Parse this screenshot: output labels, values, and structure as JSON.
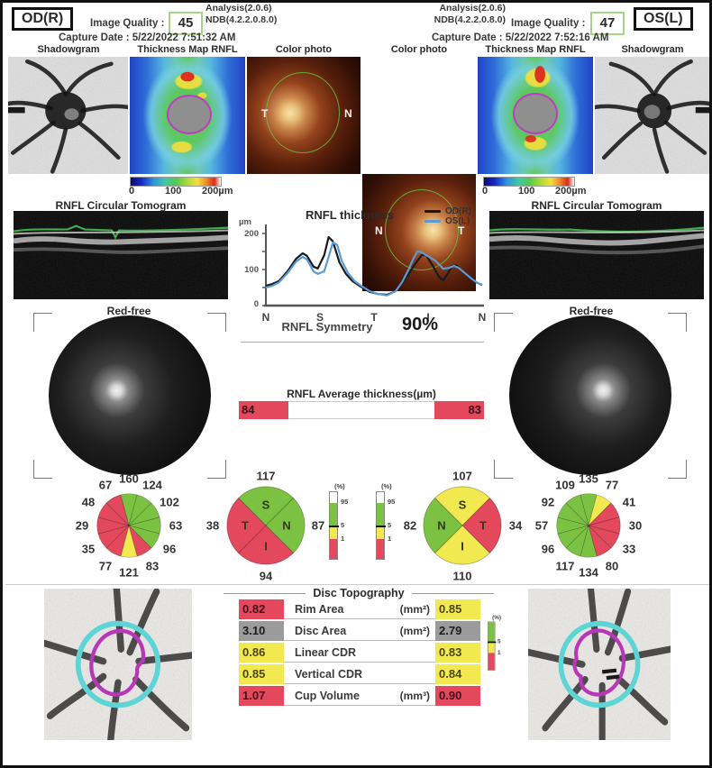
{
  "header": {
    "analysis": "Analysis(2.0.6)",
    "ndb": "NDB(4.2.2.0.8.0)",
    "quality_label": "Image Quality :",
    "od": {
      "eye": "OD(R)",
      "quality": "45",
      "capture": "Capture Date : 5/22/2022 7:51:32 AM"
    },
    "os": {
      "eye": "OS(L)",
      "quality": "47",
      "capture": "Capture Date : 5/22/2022 7:52:16 AM"
    }
  },
  "columns": {
    "shadowgram": "Shadowgram",
    "thickness_map": "Thickness Map RNFL",
    "color_photo": "Color photo"
  },
  "colorbar": {
    "t0": "0",
    "t1": "100",
    "t2": "200µm"
  },
  "photo_marks": {
    "t": "T",
    "n": "N"
  },
  "tomogram_title": "RNFL Circular Tomogram",
  "redfree_title": "Red-free",
  "chart_data": {
    "type": "line",
    "title": "RNFL thickness",
    "ylabel": "µm",
    "yticks": [
      "0",
      "100",
      "200"
    ],
    "ylim": [
      0,
      240
    ],
    "x_axis_labels": [
      "N",
      "S",
      "T",
      "I",
      "N"
    ],
    "legend_position": "top-right",
    "series": [
      {
        "name": "OD(R)",
        "color": "#1a1a1a",
        "points": [
          [
            0,
            55
          ],
          [
            3,
            60
          ],
          [
            6,
            68
          ],
          [
            10,
            95
          ],
          [
            14,
            130
          ],
          [
            17,
            145
          ],
          [
            19,
            138
          ],
          [
            22,
            108
          ],
          [
            24,
            103
          ],
          [
            27,
            140
          ],
          [
            29,
            190
          ],
          [
            31,
            178
          ],
          [
            34,
            120
          ],
          [
            37,
            88
          ],
          [
            40,
            68
          ],
          [
            44,
            52
          ],
          [
            48,
            38
          ],
          [
            52,
            32
          ],
          [
            56,
            30
          ],
          [
            60,
            40
          ],
          [
            63,
            62
          ],
          [
            66,
            88
          ],
          [
            69,
            115
          ],
          [
            72,
            140
          ],
          [
            74,
            140
          ],
          [
            77,
            112
          ],
          [
            80,
            80
          ],
          [
            82,
            70
          ],
          [
            84,
            88
          ],
          [
            86,
            108
          ],
          [
            88,
            112
          ],
          [
            91,
            95
          ],
          [
            94,
            78
          ],
          [
            97,
            65
          ],
          [
            100,
            57
          ]
        ]
      },
      {
        "name": "OS(L)",
        "color": "#5b9bd5",
        "points": [
          [
            0,
            50
          ],
          [
            3,
            55
          ],
          [
            6,
            64
          ],
          [
            10,
            90
          ],
          [
            14,
            122
          ],
          [
            17,
            135
          ],
          [
            19,
            128
          ],
          [
            22,
            95
          ],
          [
            24,
            88
          ],
          [
            27,
            95
          ],
          [
            29,
            135
          ],
          [
            31,
            175
          ],
          [
            33,
            168
          ],
          [
            35,
            125
          ],
          [
            38,
            90
          ],
          [
            41,
            68
          ],
          [
            44,
            55
          ],
          [
            48,
            40
          ],
          [
            52,
            32
          ],
          [
            56,
            28
          ],
          [
            60,
            40
          ],
          [
            63,
            65
          ],
          [
            66,
            100
          ],
          [
            68,
            128
          ],
          [
            70,
            150
          ],
          [
            72,
            148
          ],
          [
            74,
            140
          ],
          [
            76,
            133
          ],
          [
            78,
            126
          ],
          [
            80,
            115
          ],
          [
            82,
            102
          ],
          [
            85,
            105
          ],
          [
            87,
            110
          ],
          [
            89,
            105
          ],
          [
            92,
            90
          ],
          [
            95,
            75
          ],
          [
            98,
            62
          ],
          [
            100,
            58
          ]
        ]
      }
    ]
  },
  "symmetry": {
    "label": "RNFL Symmetry",
    "value": "90%"
  },
  "avg_bar": {
    "title": "RNFL Average thickness(µm)",
    "od": "84",
    "os": "83"
  },
  "percentile_scale": {
    "title": "(%)",
    "p95": "95",
    "p5": "5",
    "p1": "1"
  },
  "status_colors": {
    "green": "#7cc242",
    "yellow": "#f1e94f",
    "red": "#e3485c",
    "gray": "#9b9b9b"
  },
  "pies": {
    "od_clock": {
      "values": [
        "160",
        "124",
        "102",
        "63",
        "96",
        "83",
        "121",
        "77",
        "35",
        "29",
        "48",
        "67"
      ],
      "colors": [
        "green",
        "green",
        "green",
        "green",
        "green",
        "red",
        "yellow",
        "red",
        "red",
        "red",
        "red",
        "red"
      ]
    },
    "od_quadrant": {
      "sector_labels": [
        "S",
        "N",
        "I",
        "T"
      ],
      "values": [
        "117",
        "87",
        "94",
        "38"
      ],
      "colors": [
        "green",
        "green",
        "red",
        "red"
      ]
    },
    "os_quadrant": {
      "sector_labels": [
        "S",
        "T",
        "I",
        "N"
      ],
      "values": [
        "107",
        "34",
        "110",
        "82"
      ],
      "colors": [
        "yellow",
        "red",
        "yellow",
        "green"
      ]
    },
    "os_clock": {
      "values": [
        "135",
        "77",
        "41",
        "30",
        "33",
        "80",
        "134",
        "117",
        "96",
        "57",
        "92",
        "109"
      ],
      "colors": [
        "green",
        "yellow",
        "red",
        "red",
        "red",
        "red",
        "green",
        "green",
        "green",
        "green",
        "green",
        "green"
      ]
    }
  },
  "disc_topography": {
    "title": "Disc Topography",
    "rows": [
      {
        "od": "0.82",
        "od_status": "red",
        "label": "Rim Area",
        "unit": "(mm²)",
        "os": "0.85",
        "os_status": "yellow"
      },
      {
        "od": "3.10",
        "od_status": "gray",
        "label": "Disc Area",
        "unit": "(mm²)",
        "os": "2.79",
        "os_status": "gray"
      },
      {
        "od": "0.86",
        "od_status": "yellow",
        "label": "Linear CDR",
        "unit": "",
        "os": "0.83",
        "os_status": "yellow"
      },
      {
        "od": "0.85",
        "od_status": "yellow",
        "label": "Vertical CDR",
        "unit": "",
        "os": "0.84",
        "os_status": "yellow"
      },
      {
        "od": "1.07",
        "od_status": "red",
        "label": "Cup Volume",
        "unit": "(mm³)",
        "os": "0.90",
        "os_status": "red"
      }
    ]
  }
}
